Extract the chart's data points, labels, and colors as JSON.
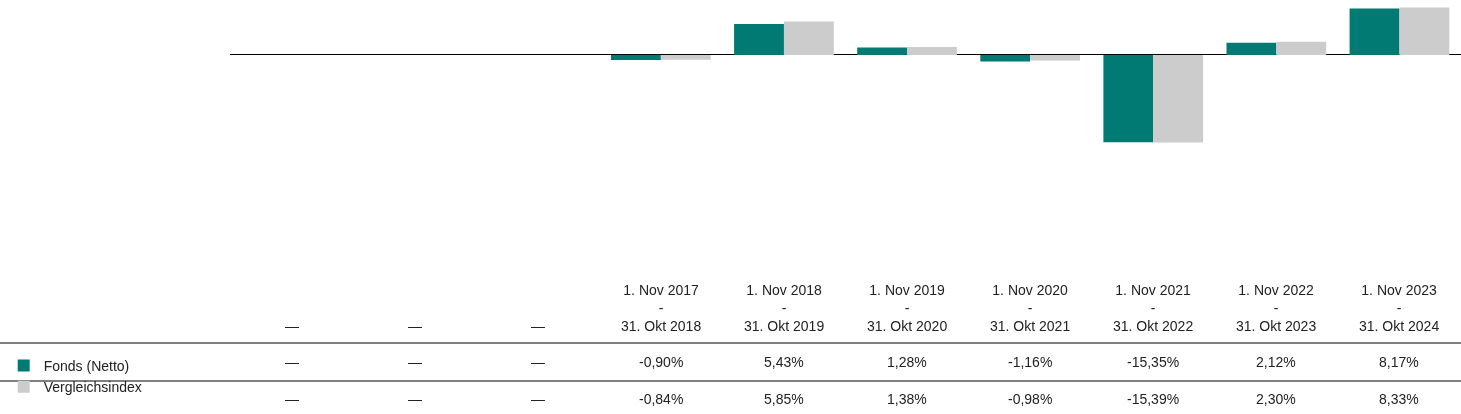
{
  "chart_data": {
    "type": "bar",
    "categories": [
      "—",
      "—",
      "—",
      "1. Nov 2017\n-\n31. Okt 2018",
      "1. Nov 2018\n-\n31. Okt 2019",
      "1. Nov 2019\n-\n31. Okt 2020",
      "1. Nov 2020\n-\n31. Okt 2021",
      "1. Nov 2021\n-\n31. Okt 2022",
      "1. Nov 2022\n-\n31. Okt 2023",
      "1. Nov 2023\n-\n31. Okt 2024"
    ],
    "legend": "bottom left",
    "series": [
      {
        "name": "Fonds (Netto)",
        "color": "#007a73",
        "values": [
          null,
          null,
          null,
          -0.9,
          5.43,
          1.28,
          -1.16,
          -15.35,
          2.12,
          8.17
        ],
        "value_labels": [
          "—",
          "—",
          "—",
          "-0,90%",
          "5,43%",
          "1,28%",
          "-1,16%",
          "-15,35%",
          "2,12%",
          "8,17%"
        ]
      },
      {
        "name": "Vergleichsindex",
        "color": "#cccccc",
        "values": [
          null,
          null,
          null,
          -0.84,
          5.85,
          1.38,
          -0.98,
          -15.39,
          2.3,
          8.33
        ],
        "value_labels": [
          "—",
          "—",
          "—",
          "-0,84%",
          "5,85%",
          "1,38%",
          "-0,98%",
          "-15,39%",
          "2,30%",
          "8,33%"
        ]
      }
    ]
  }
}
